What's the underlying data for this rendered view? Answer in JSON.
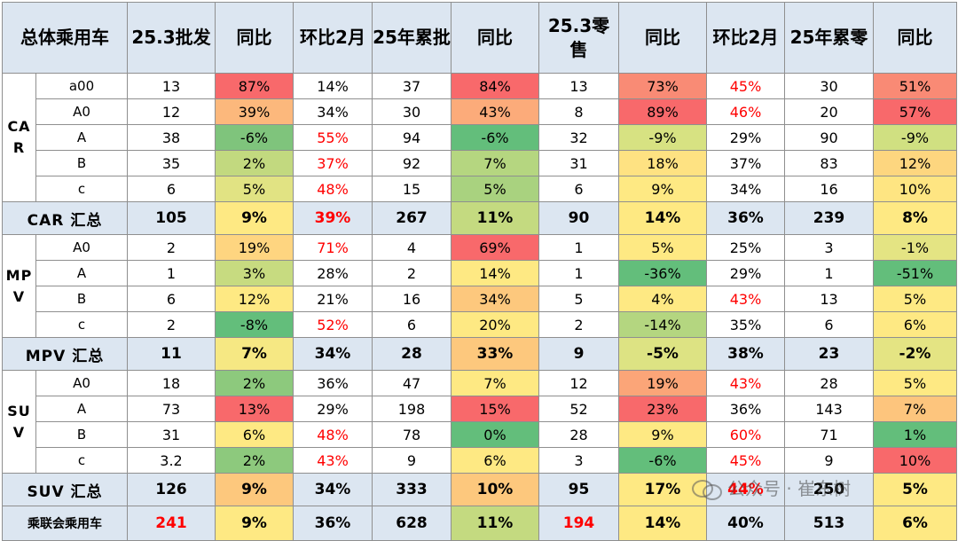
{
  "headers": [
    "总体乘用车",
    "25.3批发",
    "同比",
    "环比2月",
    "25年累批",
    "同比",
    "25.3零售",
    "同比",
    "环比2月",
    "25年累零",
    "同比"
  ],
  "groups": [
    {
      "label": "CAR",
      "rows": [
        {
          "sub": "a00",
          "v": [
            "13",
            "87%",
            "14%",
            "37",
            "84%",
            "13",
            "73%",
            "45%",
            "30",
            "51%"
          ],
          "bg": [
            null,
            "#f8696b",
            null,
            null,
            "#f8696b",
            null,
            "#f98b75",
            null,
            null,
            "#f98a75"
          ],
          "red": [
            false,
            false,
            false,
            false,
            false,
            false,
            false,
            true,
            false,
            false
          ]
        },
        {
          "sub": "A0",
          "v": [
            "12",
            "39%",
            "34%",
            "30",
            "43%",
            "8",
            "89%",
            "46%",
            "20",
            "57%"
          ],
          "bg": [
            null,
            "#fcb87c",
            null,
            null,
            "#fcab7a",
            null,
            "#f8696b",
            null,
            null,
            "#f8696b"
          ],
          "red": [
            false,
            false,
            false,
            false,
            false,
            false,
            false,
            true,
            false,
            false
          ]
        },
        {
          "sub": "A",
          "v": [
            "38",
            "-6%",
            "55%",
            "94",
            "-6%",
            "32",
            "-9%",
            "29%",
            "90",
            "-9%"
          ],
          "bg": [
            null,
            "#7fc47c",
            null,
            null,
            "#63be7b",
            null,
            "#d7e282",
            null,
            null,
            "#d0e081"
          ],
          "red": [
            false,
            false,
            true,
            false,
            false,
            false,
            false,
            false,
            false,
            false
          ]
        },
        {
          "sub": "B",
          "v": [
            "35",
            "2%",
            "37%",
            "92",
            "7%",
            "31",
            "18%",
            "37%",
            "83",
            "12%"
          ],
          "bg": [
            null,
            "#c2d97f",
            null,
            null,
            "#b5d680",
            null,
            "#fee282",
            null,
            null,
            "#fdd67f"
          ],
          "red": [
            false,
            false,
            true,
            false,
            false,
            false,
            false,
            false,
            false,
            false
          ]
        },
        {
          "sub": "c",
          "v": [
            "6",
            "5%",
            "48%",
            "15",
            "5%",
            "6",
            "9%",
            "34%",
            "16",
            "10%"
          ],
          "bg": [
            null,
            "#e1e383",
            null,
            null,
            "#a9d27f",
            null,
            "#fee983",
            null,
            null,
            "#fee582"
          ],
          "red": [
            false,
            false,
            true,
            false,
            false,
            false,
            false,
            false,
            false,
            false
          ]
        }
      ],
      "summary": {
        "label": "CAR 汇总",
        "v": [
          "105",
          "9%",
          "39%",
          "267",
          "11%",
          "90",
          "14%",
          "36%",
          "239",
          "8%"
        ],
        "bg": [
          null,
          "#fee983",
          null,
          null,
          "#c4da80",
          null,
          "#fee982",
          null,
          null,
          "#fee983"
        ],
        "red": [
          false,
          false,
          true,
          false,
          false,
          false,
          false,
          false,
          false,
          false
        ]
      }
    },
    {
      "label": "MPV",
      "rows": [
        {
          "sub": "A0",
          "v": [
            "2",
            "19%",
            "71%",
            "4",
            "69%",
            "1",
            "5%",
            "25%",
            "3",
            "-1%"
          ],
          "bg": [
            null,
            "#fed580",
            null,
            null,
            "#f8696b",
            null,
            "#fee983",
            null,
            null,
            "#e4e483"
          ],
          "red": [
            false,
            false,
            true,
            false,
            false,
            false,
            false,
            false,
            false,
            false
          ]
        },
        {
          "sub": "A",
          "v": [
            "1",
            "3%",
            "28%",
            "2",
            "14%",
            "1",
            "-36%",
            "29%",
            "1",
            "-51%"
          ],
          "bg": [
            null,
            "#c7db80",
            null,
            null,
            "#fee983",
            null,
            "#63be7b",
            null,
            null,
            "#63be7b"
          ],
          "red": [
            false,
            false,
            false,
            false,
            false,
            false,
            false,
            false,
            false,
            false
          ]
        },
        {
          "sub": "B",
          "v": [
            "6",
            "12%",
            "21%",
            "16",
            "34%",
            "5",
            "4%",
            "43%",
            "13",
            "5%"
          ],
          "bg": [
            null,
            "#fee983",
            null,
            null,
            "#fdc87d",
            null,
            "#fee983",
            null,
            null,
            "#fee983"
          ],
          "red": [
            false,
            false,
            false,
            false,
            false,
            false,
            false,
            true,
            false,
            false
          ]
        },
        {
          "sub": "c",
          "v": [
            "2",
            "-8%",
            "52%",
            "6",
            "20%",
            "2",
            "-14%",
            "35%",
            "6",
            "6%"
          ],
          "bg": [
            null,
            "#63be7b",
            null,
            null,
            "#fee983",
            null,
            "#b4d680",
            null,
            null,
            "#fee983"
          ],
          "red": [
            false,
            false,
            true,
            false,
            false,
            false,
            false,
            false,
            false,
            false
          ]
        }
      ],
      "summary": {
        "label": "MPV 汇总",
        "v": [
          "11",
          "7%",
          "34%",
          "28",
          "33%",
          "9",
          "-5%",
          "38%",
          "23",
          "-2%"
        ],
        "bg": [
          null,
          "#f6e883",
          null,
          null,
          "#fdc87d",
          null,
          "#dde383",
          null,
          null,
          "#e4e483"
        ],
        "red": [
          false,
          false,
          false,
          false,
          false,
          false,
          false,
          false,
          false,
          false
        ]
      }
    },
    {
      "label": "SUV",
      "rows": [
        {
          "sub": "A0",
          "v": [
            "18",
            "2%",
            "36%",
            "47",
            "7%",
            "12",
            "19%",
            "43%",
            "28",
            "5%"
          ],
          "bg": [
            null,
            "#8dc97d",
            null,
            null,
            "#fee983",
            null,
            "#fba578",
            null,
            null,
            "#fee983"
          ],
          "red": [
            false,
            false,
            false,
            false,
            false,
            false,
            false,
            true,
            false,
            false
          ]
        },
        {
          "sub": "A",
          "v": [
            "73",
            "13%",
            "29%",
            "198",
            "15%",
            "52",
            "23%",
            "36%",
            "143",
            "7%"
          ],
          "bg": [
            null,
            "#f8696b",
            null,
            null,
            "#f8696b",
            null,
            "#f8696b",
            null,
            null,
            "#fdc57d"
          ],
          "red": [
            false,
            false,
            false,
            false,
            false,
            false,
            false,
            false,
            false,
            false
          ]
        },
        {
          "sub": "B",
          "v": [
            "31",
            "6%",
            "48%",
            "78",
            "0%",
            "28",
            "9%",
            "60%",
            "71",
            "1%"
          ],
          "bg": [
            null,
            "#fee983",
            null,
            null,
            "#63be7b",
            null,
            "#fee983",
            null,
            null,
            "#63be7b"
          ],
          "red": [
            false,
            false,
            true,
            false,
            false,
            false,
            false,
            true,
            false,
            false
          ]
        },
        {
          "sub": "c",
          "v": [
            "3.2",
            "2%",
            "43%",
            "9",
            "6%",
            "3",
            "-6%",
            "45%",
            "9",
            "10%"
          ],
          "bg": [
            null,
            "#8dc97d",
            null,
            null,
            "#fee983",
            null,
            "#63be7b",
            null,
            null,
            "#f8696b"
          ],
          "red": [
            false,
            false,
            true,
            false,
            false,
            false,
            false,
            true,
            false,
            false
          ]
        }
      ],
      "summary": {
        "label": "SUV 汇总",
        "v": [
          "126",
          "9%",
          "34%",
          "333",
          "10%",
          "95",
          "17%",
          "44%",
          "250",
          "5%"
        ],
        "bg": [
          null,
          "#fdc87d",
          null,
          null,
          "#fdc87d",
          null,
          "#fee983",
          null,
          null,
          "#fee983"
        ],
        "red": [
          false,
          false,
          false,
          false,
          false,
          false,
          false,
          true,
          false,
          false
        ]
      }
    }
  ],
  "total": {
    "label": "乘联会乘用车",
    "v": [
      "241",
      "9%",
      "36%",
      "628",
      "11%",
      "194",
      "14%",
      "40%",
      "513",
      "6%"
    ],
    "bg": [
      null,
      "#fee983",
      null,
      null,
      "#c4da80",
      null,
      "#fee983",
      null,
      null,
      "#fee983"
    ],
    "red": [
      true,
      false,
      false,
      false,
      false,
      true,
      false,
      false,
      false,
      false
    ]
  },
  "watermark": "公众号 · 崔东树"
}
